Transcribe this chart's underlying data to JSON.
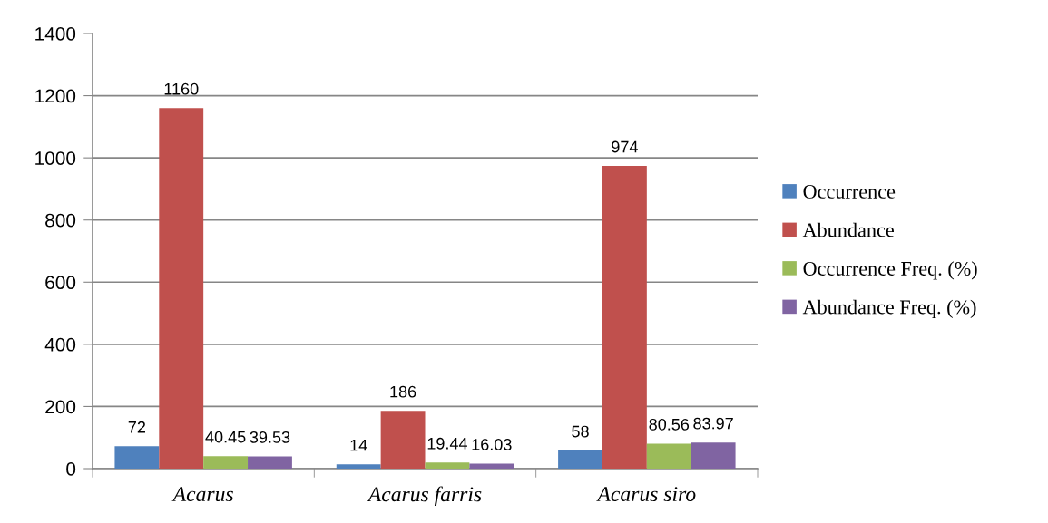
{
  "chart_data": {
    "type": "bar",
    "categories": [
      "Acarus",
      "Acarus farris",
      "Acarus siro"
    ],
    "series": [
      {
        "name": "Occurrence",
        "color": "#4f81bd",
        "values": [
          72,
          14,
          58
        ]
      },
      {
        "name": "Abundance",
        "color": "#c0504d",
        "values": [
          1160,
          186,
          974
        ]
      },
      {
        "name": "Occurrence Freq. (%)",
        "color": "#9bbb59",
        "values": [
          40.45,
          19.44,
          80.56
        ]
      },
      {
        "name": "Abundance Freq. (%)",
        "color": "#8064a2",
        "values": [
          39.53,
          16.03,
          83.97
        ]
      }
    ],
    "ylim": [
      0,
      1400
    ],
    "yticks": [
      0,
      200,
      400,
      600,
      800,
      1000,
      1200,
      1400
    ],
    "grid": "y",
    "legend": "right",
    "data_labels": true
  }
}
